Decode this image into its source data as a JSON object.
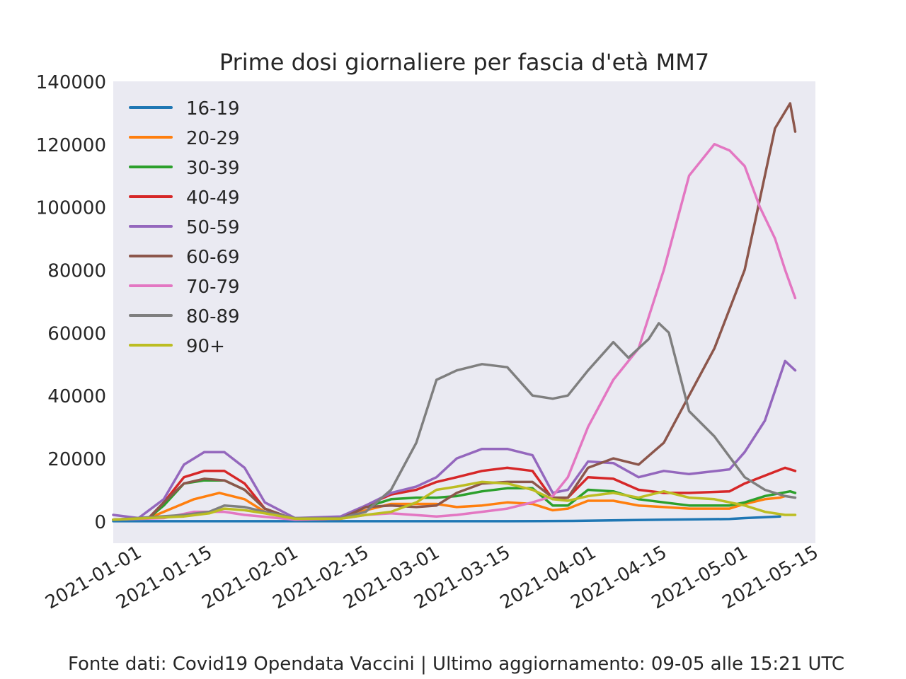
{
  "footer": "Fonte dati: Covid19 Opendata Vaccini | Ultimo aggiornamento: 09-05 alle 15:21 UTC",
  "chart_data": {
    "type": "line",
    "title": "Prime dosi giornaliere per fascia d'età MM7",
    "xlabel": "",
    "ylabel": "",
    "x_range": [
      "2020-12-27",
      "2021-05-15"
    ],
    "ylim": [
      -7000,
      140000
    ],
    "y_ticks": [
      0,
      20000,
      40000,
      60000,
      80000,
      100000,
      120000,
      140000
    ],
    "x_ticks": [
      "2021-01-01",
      "2021-01-15",
      "2021-02-01",
      "2021-02-15",
      "2021-03-01",
      "2021-03-15",
      "2021-04-01",
      "2021-04-15",
      "2021-05-01",
      "2021-05-15"
    ],
    "grid": false,
    "legend_position": "top-left",
    "background": "#EAEAF2",
    "series": [
      {
        "name": "16-19",
        "color": "#1f77b4",
        "points": [
          [
            "2020-12-27",
            0
          ],
          [
            "2021-01-15",
            0
          ],
          [
            "2021-02-15",
            0
          ],
          [
            "2021-03-15",
            0
          ],
          [
            "2021-03-28",
            100
          ],
          [
            "2021-04-15",
            500
          ],
          [
            "2021-04-28",
            700
          ],
          [
            "2021-05-01",
            1000
          ],
          [
            "2021-05-08",
            1500
          ]
        ]
      },
      {
        "name": "20-29",
        "color": "#ff7f0e",
        "points": [
          [
            "2020-12-27",
            500
          ],
          [
            "2021-01-03",
            1000
          ],
          [
            "2021-01-06",
            3000
          ],
          [
            "2021-01-12",
            7000
          ],
          [
            "2021-01-17",
            9000
          ],
          [
            "2021-01-22",
            7000
          ],
          [
            "2021-01-26",
            3000
          ],
          [
            "2021-02-01",
            500
          ],
          [
            "2021-02-10",
            800
          ],
          [
            "2021-02-15",
            3500
          ],
          [
            "2021-02-20",
            5500
          ],
          [
            "2021-03-01",
            5500
          ],
          [
            "2021-03-05",
            4500
          ],
          [
            "2021-03-10",
            5000
          ],
          [
            "2021-03-15",
            6000
          ],
          [
            "2021-03-20",
            5500
          ],
          [
            "2021-03-24",
            3500
          ],
          [
            "2021-03-27",
            4000
          ],
          [
            "2021-03-31",
            6500
          ],
          [
            "2021-04-05",
            6500
          ],
          [
            "2021-04-10",
            5000
          ],
          [
            "2021-04-15",
            4500
          ],
          [
            "2021-04-20",
            4000
          ],
          [
            "2021-04-28",
            4000
          ],
          [
            "2021-05-01",
            5500
          ],
          [
            "2021-05-05",
            7000
          ],
          [
            "2021-05-08",
            7500
          ],
          [
            "2021-05-09",
            8000
          ]
        ]
      },
      {
        "name": "30-39",
        "color": "#2ca02c",
        "points": [
          [
            "2020-12-27",
            500
          ],
          [
            "2021-01-03",
            1000
          ],
          [
            "2021-01-06",
            5000
          ],
          [
            "2021-01-10",
            12000
          ],
          [
            "2021-01-14",
            13000
          ],
          [
            "2021-01-18",
            13000
          ],
          [
            "2021-01-22",
            10000
          ],
          [
            "2021-01-26",
            4000
          ],
          [
            "2021-02-01",
            500
          ],
          [
            "2021-02-10",
            800
          ],
          [
            "2021-02-15",
            4500
          ],
          [
            "2021-02-20",
            7000
          ],
          [
            "2021-02-25",
            7500
          ],
          [
            "2021-03-01",
            7500
          ],
          [
            "2021-03-05",
            8000
          ],
          [
            "2021-03-10",
            9500
          ],
          [
            "2021-03-15",
            10500
          ],
          [
            "2021-03-20",
            10500
          ],
          [
            "2021-03-24",
            5000
          ],
          [
            "2021-03-27",
            5000
          ],
          [
            "2021-03-31",
            10000
          ],
          [
            "2021-04-05",
            9500
          ],
          [
            "2021-04-10",
            7000
          ],
          [
            "2021-04-15",
            6000
          ],
          [
            "2021-04-20",
            5000
          ],
          [
            "2021-04-28",
            5000
          ],
          [
            "2021-05-01",
            6000
          ],
          [
            "2021-05-05",
            8000
          ],
          [
            "2021-05-10",
            9500
          ],
          [
            "2021-05-11",
            9000
          ]
        ]
      },
      {
        "name": "40-49",
        "color": "#d62728",
        "points": [
          [
            "2020-12-27",
            500
          ],
          [
            "2021-01-03",
            1000
          ],
          [
            "2021-01-06",
            6000
          ],
          [
            "2021-01-10",
            14000
          ],
          [
            "2021-01-14",
            16000
          ],
          [
            "2021-01-18",
            16000
          ],
          [
            "2021-01-22",
            12000
          ],
          [
            "2021-01-26",
            4000
          ],
          [
            "2021-02-01",
            500
          ],
          [
            "2021-02-10",
            800
          ],
          [
            "2021-02-15",
            5000
          ],
          [
            "2021-02-20",
            8500
          ],
          [
            "2021-02-25",
            10000
          ],
          [
            "2021-03-01",
            12500
          ],
          [
            "2021-03-05",
            14000
          ],
          [
            "2021-03-10",
            16000
          ],
          [
            "2021-03-15",
            17000
          ],
          [
            "2021-03-20",
            16000
          ],
          [
            "2021-03-24",
            7000
          ],
          [
            "2021-03-27",
            7500
          ],
          [
            "2021-03-31",
            14000
          ],
          [
            "2021-04-05",
            13500
          ],
          [
            "2021-04-10",
            10000
          ],
          [
            "2021-04-15",
            9000
          ],
          [
            "2021-04-20",
            9000
          ],
          [
            "2021-04-28",
            9500
          ],
          [
            "2021-05-01",
            12000
          ],
          [
            "2021-05-05",
            14500
          ],
          [
            "2021-05-09",
            17000
          ],
          [
            "2021-05-11",
            16000
          ]
        ]
      },
      {
        "name": "50-59",
        "color": "#9467bd",
        "points": [
          [
            "2020-12-27",
            2000
          ],
          [
            "2021-01-01",
            1000
          ],
          [
            "2021-01-06",
            7000
          ],
          [
            "2021-01-10",
            18000
          ],
          [
            "2021-01-14",
            22000
          ],
          [
            "2021-01-18",
            22000
          ],
          [
            "2021-01-22",
            17000
          ],
          [
            "2021-01-26",
            6000
          ],
          [
            "2021-02-01",
            1000
          ],
          [
            "2021-02-10",
            1500
          ],
          [
            "2021-02-15",
            5000
          ],
          [
            "2021-02-20",
            9000
          ],
          [
            "2021-02-25",
            11000
          ],
          [
            "2021-03-01",
            14000
          ],
          [
            "2021-03-05",
            20000
          ],
          [
            "2021-03-10",
            23000
          ],
          [
            "2021-03-15",
            23000
          ],
          [
            "2021-03-20",
            21000
          ],
          [
            "2021-03-24",
            9000
          ],
          [
            "2021-03-27",
            10000
          ],
          [
            "2021-03-31",
            19000
          ],
          [
            "2021-04-05",
            18500
          ],
          [
            "2021-04-10",
            14000
          ],
          [
            "2021-04-15",
            16000
          ],
          [
            "2021-04-20",
            15000
          ],
          [
            "2021-04-28",
            16500
          ],
          [
            "2021-05-01",
            22000
          ],
          [
            "2021-05-05",
            32000
          ],
          [
            "2021-05-09",
            51000
          ],
          [
            "2021-05-11",
            48000
          ]
        ]
      },
      {
        "name": "60-69",
        "color": "#8c564b",
        "points": [
          [
            "2020-12-27",
            500
          ],
          [
            "2021-01-03",
            1000
          ],
          [
            "2021-01-06",
            6000
          ],
          [
            "2021-01-10",
            12000
          ],
          [
            "2021-01-14",
            13500
          ],
          [
            "2021-01-18",
            13000
          ],
          [
            "2021-01-22",
            10000
          ],
          [
            "2021-01-26",
            4000
          ],
          [
            "2021-02-01",
            500
          ],
          [
            "2021-02-10",
            800
          ],
          [
            "2021-02-15",
            4500
          ],
          [
            "2021-02-20",
            5000
          ],
          [
            "2021-02-25",
            4500
          ],
          [
            "2021-03-01",
            5000
          ],
          [
            "2021-03-05",
            9000
          ],
          [
            "2021-03-10",
            12000
          ],
          [
            "2021-03-15",
            12500
          ],
          [
            "2021-03-20",
            12500
          ],
          [
            "2021-03-24",
            7500
          ],
          [
            "2021-03-27",
            7500
          ],
          [
            "2021-03-31",
            17000
          ],
          [
            "2021-04-05",
            20000
          ],
          [
            "2021-04-10",
            18000
          ],
          [
            "2021-04-15",
            25000
          ],
          [
            "2021-04-20",
            40000
          ],
          [
            "2021-04-25",
            55000
          ],
          [
            "2021-05-01",
            80000
          ],
          [
            "2021-05-03",
            95000
          ],
          [
            "2021-05-07",
            125000
          ],
          [
            "2021-05-10",
            133000
          ],
          [
            "2021-05-11",
            124000
          ]
        ]
      },
      {
        "name": "70-79",
        "color": "#e377c2",
        "points": [
          [
            "2020-12-27",
            500
          ],
          [
            "2021-01-06",
            1000
          ],
          [
            "2021-01-12",
            3000
          ],
          [
            "2021-01-18",
            3000
          ],
          [
            "2021-01-22",
            2000
          ],
          [
            "2021-02-01",
            500
          ],
          [
            "2021-02-10",
            800
          ],
          [
            "2021-02-15",
            2000
          ],
          [
            "2021-02-20",
            2500
          ],
          [
            "2021-03-01",
            1500
          ],
          [
            "2021-03-05",
            2000
          ],
          [
            "2021-03-10",
            3000
          ],
          [
            "2021-03-15",
            4000
          ],
          [
            "2021-03-20",
            6000
          ],
          [
            "2021-03-24",
            8000
          ],
          [
            "2021-03-27",
            14000
          ],
          [
            "2021-03-31",
            30000
          ],
          [
            "2021-04-05",
            45000
          ],
          [
            "2021-04-10",
            55000
          ],
          [
            "2021-04-15",
            80000
          ],
          [
            "2021-04-20",
            110000
          ],
          [
            "2021-04-25",
            120000
          ],
          [
            "2021-04-28",
            118000
          ],
          [
            "2021-05-01",
            113000
          ],
          [
            "2021-05-04",
            100000
          ],
          [
            "2021-05-07",
            90000
          ],
          [
            "2021-05-09",
            80000
          ],
          [
            "2021-05-11",
            71000
          ]
        ]
      },
      {
        "name": "80-89",
        "color": "#7f7f7f",
        "points": [
          [
            "2020-12-27",
            500
          ],
          [
            "2021-01-10",
            2000
          ],
          [
            "2021-01-15",
            3000
          ],
          [
            "2021-01-18",
            5000
          ],
          [
            "2021-01-22",
            4500
          ],
          [
            "2021-01-26",
            3000
          ],
          [
            "2021-02-01",
            1000
          ],
          [
            "2021-02-10",
            1000
          ],
          [
            "2021-02-15",
            3000
          ],
          [
            "2021-02-20",
            10000
          ],
          [
            "2021-02-25",
            25000
          ],
          [
            "2021-03-01",
            45000
          ],
          [
            "2021-03-05",
            48000
          ],
          [
            "2021-03-10",
            50000
          ],
          [
            "2021-03-15",
            49000
          ],
          [
            "2021-03-20",
            40000
          ],
          [
            "2021-03-24",
            39000
          ],
          [
            "2021-03-27",
            40000
          ],
          [
            "2021-03-31",
            48000
          ],
          [
            "2021-04-05",
            57000
          ],
          [
            "2021-04-08",
            52000
          ],
          [
            "2021-04-12",
            58000
          ],
          [
            "2021-04-14",
            63000
          ],
          [
            "2021-04-16",
            60000
          ],
          [
            "2021-04-20",
            35000
          ],
          [
            "2021-04-25",
            27000
          ],
          [
            "2021-05-01",
            14000
          ],
          [
            "2021-05-05",
            10000
          ],
          [
            "2021-05-09",
            8000
          ],
          [
            "2021-05-11",
            7500
          ]
        ]
      },
      {
        "name": "90+",
        "color": "#bcbd22",
        "points": [
          [
            "2020-12-27",
            500
          ],
          [
            "2021-01-10",
            1500
          ],
          [
            "2021-01-15",
            2500
          ],
          [
            "2021-01-18",
            4000
          ],
          [
            "2021-01-22",
            3500
          ],
          [
            "2021-01-26",
            2500
          ],
          [
            "2021-02-01",
            800
          ],
          [
            "2021-02-10",
            800
          ],
          [
            "2021-02-15",
            2000
          ],
          [
            "2021-02-20",
            3000
          ],
          [
            "2021-02-25",
            6000
          ],
          [
            "2021-03-01",
            10000
          ],
          [
            "2021-03-05",
            11000
          ],
          [
            "2021-03-10",
            12500
          ],
          [
            "2021-03-15",
            12000
          ],
          [
            "2021-03-20",
            10000
          ],
          [
            "2021-03-24",
            7000
          ],
          [
            "2021-03-27",
            6500
          ],
          [
            "2021-03-31",
            8000
          ],
          [
            "2021-04-05",
            9000
          ],
          [
            "2021-04-10",
            7500
          ],
          [
            "2021-04-15",
            9500
          ],
          [
            "2021-04-20",
            7500
          ],
          [
            "2021-04-25",
            7000
          ],
          [
            "2021-05-01",
            5000
          ],
          [
            "2021-05-05",
            3000
          ],
          [
            "2021-05-09",
            2000
          ],
          [
            "2021-05-11",
            2000
          ]
        ]
      }
    ]
  }
}
